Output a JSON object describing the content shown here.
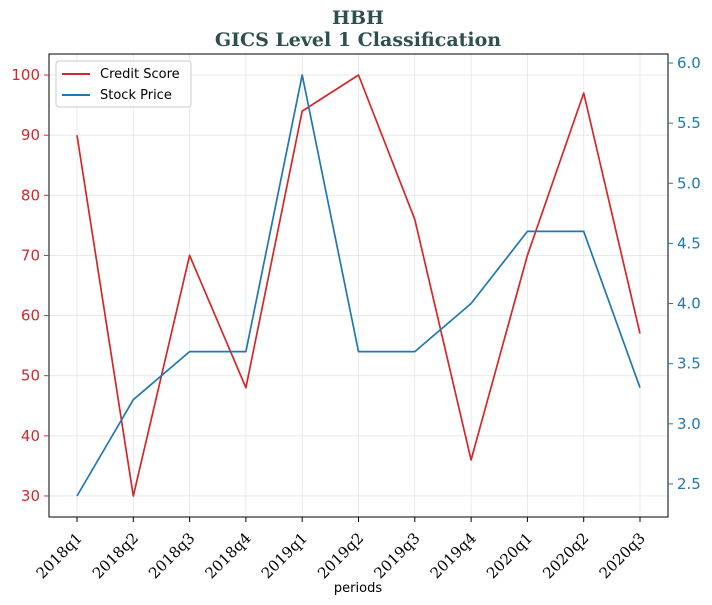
{
  "chart_data": {
    "type": "line",
    "title": "HBH",
    "subtitle": "GICS Level 1 Classification",
    "xlabel": "periods",
    "ylabel": "",
    "ylabel_right": "",
    "categories": [
      "2018q1",
      "2018q2",
      "2018q3",
      "2018q4",
      "2019q1",
      "2019q2",
      "2019q3",
      "2019q4",
      "2020q1",
      "2020q2",
      "2020q3"
    ],
    "series": [
      {
        "name": "Credit Score",
        "axis": "left",
        "color": "#d62728",
        "values": [
          90,
          30,
          70,
          48,
          94,
          100,
          76,
          36,
          70,
          97,
          57
        ]
      },
      {
        "name": "Stock Price",
        "axis": "right",
        "color": "#1f77b4",
        "values": [
          2.4,
          3.2,
          3.6,
          3.6,
          5.9,
          3.6,
          3.6,
          4.0,
          4.6,
          4.6,
          3.3
        ]
      }
    ],
    "ylim_left": [
      26.5,
      103.5
    ],
    "yticks_left": [
      30,
      40,
      50,
      60,
      70,
      80,
      90,
      100
    ],
    "ylim_right": [
      2.225,
      6.075
    ],
    "yticks_right": [
      "2.5",
      "3.0",
      "3.5",
      "4.0",
      "4.5",
      "5.0",
      "5.5",
      "6.0"
    ],
    "grid": true,
    "legend_position": "top-left",
    "left_axis_color": "#d62728",
    "right_axis_color": "#1f77b4"
  }
}
